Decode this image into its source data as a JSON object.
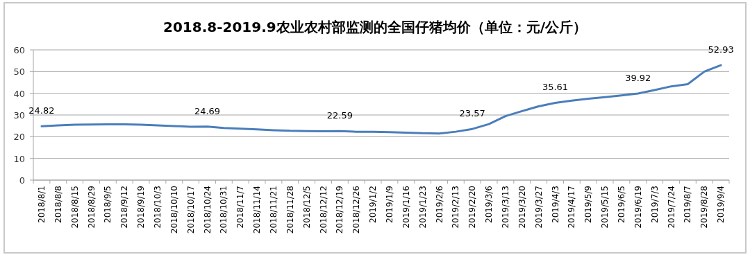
{
  "chart_data": {
    "type": "line",
    "title": "2018.8-2019.9农业农村部监测的全国仔猪均价（单位：元/公斤）",
    "categories": [
      "2018/8/1",
      "2018/8/8",
      "2018/8/15",
      "2018/8/29",
      "2018/9/5",
      "2018/9/12",
      "2018/9/19",
      "2018/10/3",
      "2018/10/10",
      "2018/10/17",
      "2018/10/24",
      "2018/10/31",
      "2018/11/7",
      "2018/11/14",
      "2018/11/21",
      "2018/11/28",
      "2018/12/5",
      "2018/12/12",
      "2018/12/19",
      "2018/12/26",
      "2019/1/2",
      "2019/1/9",
      "2019/1/16",
      "2019/1/23",
      "2019/2/6",
      "2019/2/13",
      "2019/2/20",
      "2019/3/6",
      "2019/3/13",
      "2019/3/20",
      "2019/3/27",
      "2019/4/3",
      "2019/4/17",
      "2019/5/9",
      "2019/5/15",
      "2019/6/5",
      "2019/6/19",
      "2019/7/3",
      "2019/7/24",
      "2019/8/7",
      "2019/8/28",
      "2019/9/4"
    ],
    "series": [
      {
        "color": "#4a7ebb",
        "values": [
          24.82,
          25.2,
          25.5,
          25.6,
          25.7,
          25.7,
          25.5,
          25.2,
          24.9,
          24.6,
          24.69,
          24.0,
          23.7,
          23.4,
          23.0,
          22.7,
          22.6,
          22.5,
          22.59,
          22.3,
          22.3,
          22.1,
          21.9,
          21.6,
          21.5,
          22.3,
          23.57,
          25.8,
          29.5,
          31.8,
          34.0,
          35.61,
          36.6,
          37.5,
          38.2,
          39.0,
          39.92,
          41.5,
          43.2,
          44.2,
          50.0,
          52.93
        ],
        "value_labels": [
          "24.82",
          null,
          null,
          null,
          null,
          null,
          null,
          null,
          null,
          null,
          "24.69",
          null,
          null,
          null,
          null,
          null,
          null,
          null,
          "22.59",
          null,
          null,
          null,
          null,
          null,
          null,
          null,
          "23.57",
          null,
          null,
          null,
          null,
          "35.61",
          null,
          null,
          null,
          null,
          "39.92",
          null,
          null,
          null,
          null,
          "52.93"
        ]
      }
    ],
    "ylim": [
      0,
      60
    ],
    "yticks": [
      0,
      10,
      20,
      30,
      40,
      50,
      60
    ],
    "grid": "y",
    "marker": "none"
  }
}
